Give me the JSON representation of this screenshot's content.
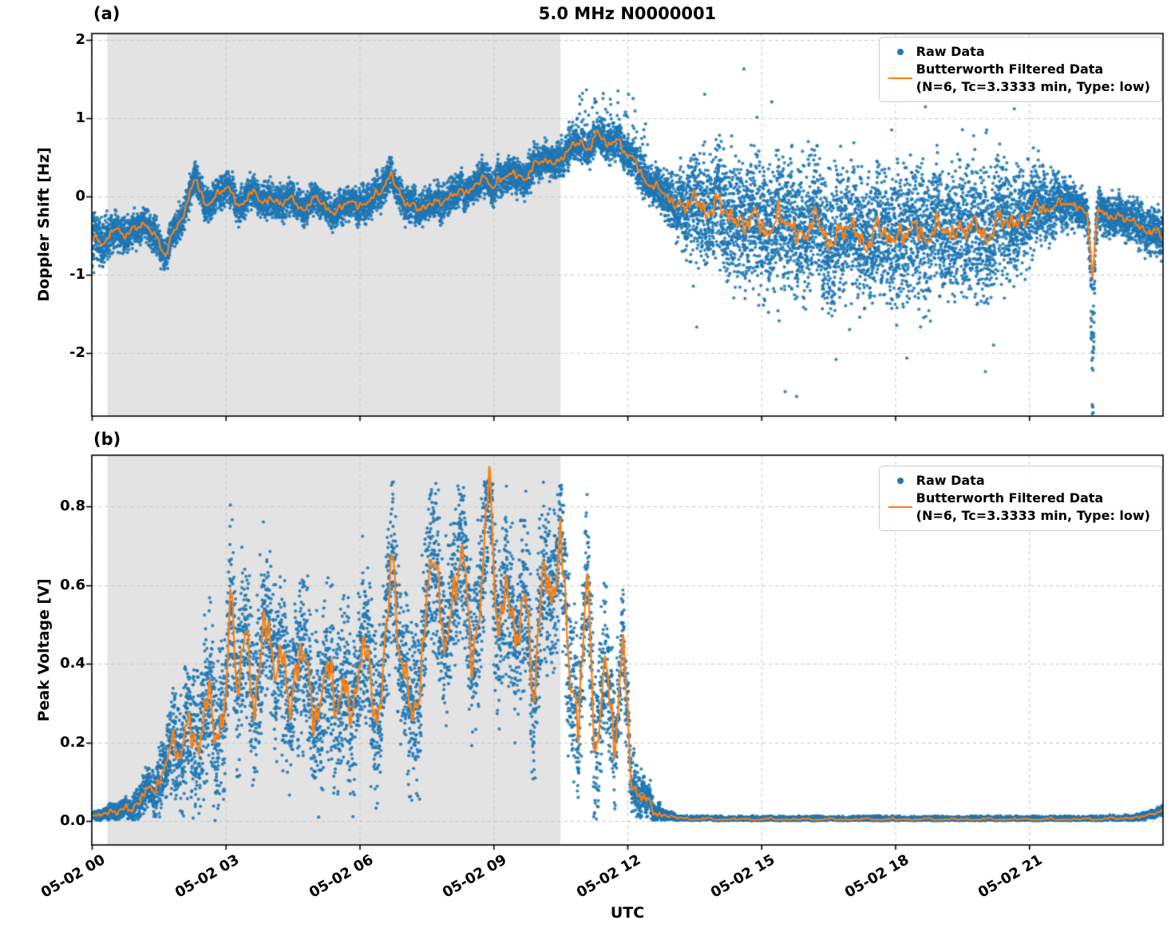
{
  "title": "5.0 MHz N0000001",
  "xlabel": "UTC",
  "legend": {
    "raw_label": "Raw Data",
    "filtered_label": "Butterworth Filtered Data",
    "filtered_sublabel": "(N=6, Tc=3.3333 min, Type: low)"
  },
  "colors": {
    "raw": "#1f77b4",
    "filtered": "#ff7f0e",
    "shade": "rgba(128,128,128,0.22)",
    "grid": "#c8c8c8",
    "axis": "#000000"
  },
  "x_axis": {
    "range_hours": [
      0,
      24
    ],
    "tick_hours": [
      0,
      3,
      6,
      9,
      12,
      15,
      18,
      21
    ],
    "tick_labels": [
      "05-02 00",
      "05-02 03",
      "05-02 06",
      "05-02 09",
      "05-02 12",
      "05-02 15",
      "05-02 18",
      "05-02 21"
    ]
  },
  "chart_data": [
    {
      "id": "a",
      "panel_label": "(a)",
      "type": "scatter",
      "title": "5.0 MHz N0000001",
      "ylabel": "Doppler Shift [Hz]",
      "ylim": [
        -2.8,
        2.08
      ],
      "yticks": [
        -2,
        -1,
        0,
        1,
        2
      ],
      "ytick_labels": [
        "-2",
        "-1",
        "0",
        "1",
        "2"
      ],
      "shade_hours": [
        0.35,
        10.5
      ],
      "series": [
        {
          "name": "Raw Data",
          "type": "scatter"
        },
        {
          "name": "Butterworth Filtered Data (N=6, Tc=3.3333 min, Type: low)",
          "type": "line"
        }
      ],
      "filtered_line": {
        "x": [
          0,
          0.25,
          0.5,
          0.75,
          1.0,
          1.2,
          1.45,
          1.65,
          1.8,
          2.0,
          2.2,
          2.35,
          2.55,
          2.8,
          3.05,
          3.3,
          3.55,
          3.8,
          4.0,
          4.2,
          4.45,
          4.7,
          4.95,
          5.2,
          5.45,
          5.7,
          5.95,
          6.2,
          6.45,
          6.7,
          6.85,
          7.05,
          7.3,
          7.55,
          7.8,
          8.05,
          8.3,
          8.55,
          8.8,
          9.0,
          9.2,
          9.45,
          9.7,
          9.95,
          10.2,
          10.45,
          10.7,
          10.95,
          11.15,
          11.35,
          11.55,
          11.75,
          11.95,
          12.15,
          12.35,
          12.6,
          12.85,
          13.1,
          13.4,
          13.8,
          14.2,
          14.6,
          15.0,
          15.4,
          15.8,
          16.2,
          16.6,
          17.0,
          17.4,
          17.8,
          18.2,
          18.6,
          19.0,
          19.4,
          19.8,
          20.2,
          20.6,
          21.0,
          21.4,
          21.8,
          22.1,
          22.3,
          22.42,
          22.55,
          22.8,
          23.1,
          23.4,
          23.7,
          24.0
        ],
        "v": [
          -0.55,
          -0.62,
          -0.38,
          -0.5,
          -0.42,
          -0.3,
          -0.55,
          -0.78,
          -0.45,
          -0.3,
          0.05,
          0.18,
          -0.08,
          0.0,
          0.12,
          -0.12,
          0.05,
          -0.08,
          0.02,
          -0.12,
          -0.02,
          -0.15,
          -0.05,
          -0.1,
          -0.2,
          -0.08,
          -0.12,
          -0.02,
          0.0,
          0.32,
          0.1,
          -0.1,
          -0.18,
          -0.05,
          -0.12,
          0.02,
          0.1,
          0.05,
          0.3,
          0.12,
          0.22,
          0.3,
          0.25,
          0.38,
          0.5,
          0.42,
          0.6,
          0.72,
          0.62,
          0.78,
          0.68,
          0.75,
          0.55,
          0.45,
          0.28,
          0.1,
          0.02,
          -0.08,
          -0.12,
          -0.08,
          -0.22,
          -0.3,
          -0.38,
          -0.3,
          -0.45,
          -0.38,
          -0.52,
          -0.42,
          -0.55,
          -0.45,
          -0.5,
          -0.42,
          -0.48,
          -0.38,
          -0.45,
          -0.4,
          -0.32,
          -0.22,
          -0.12,
          -0.1,
          -0.12,
          -0.18,
          -1.05,
          -0.18,
          -0.22,
          -0.28,
          -0.35,
          -0.42,
          -0.55
        ]
      },
      "scatter_spread": {
        "x": [
          0,
          0.4,
          0.8,
          10.5,
          11.5,
          12.6,
          13.0,
          13.6,
          14.4,
          20.0,
          21.0,
          21.6,
          22.2,
          23.2,
          24
        ],
        "v": [
          0.45,
          0.32,
          0.27,
          0.27,
          0.3,
          0.3,
          0.45,
          0.8,
          1.0,
          1.0,
          0.75,
          0.45,
          0.33,
          0.33,
          0.4
        ]
      },
      "wiggle": {
        "x": [
          0,
          12.8,
          13.6,
          20.6,
          21.6,
          24
        ],
        "v": [
          0.05,
          0.06,
          0.16,
          0.16,
          0.06,
          0.06
        ]
      },
      "n_points": 14000,
      "seed": 7
    },
    {
      "id": "b",
      "panel_label": "(b)",
      "type": "scatter",
      "ylabel": "Peak Voltage [V]",
      "ylim": [
        -0.06,
        0.93
      ],
      "yticks": [
        0,
        0.2,
        0.4,
        0.6,
        0.8
      ],
      "ytick_labels": [
        "0.0",
        "0.2",
        "0.4",
        "0.6",
        "0.8"
      ],
      "shade_hours": [
        0.35,
        10.5
      ],
      "y_clip": [
        0.002,
        0.87
      ],
      "series": [
        {
          "name": "Raw Data",
          "type": "scatter"
        },
        {
          "name": "Butterworth Filtered Data (N=6, Tc=3.3333 min, Type: low)",
          "type": "line"
        }
      ],
      "filtered_line": {
        "x": [
          0,
          0.5,
          0.9,
          1.3,
          1.6,
          1.8,
          2.0,
          2.2,
          2.4,
          2.6,
          2.8,
          3.0,
          3.1,
          3.25,
          3.45,
          3.65,
          3.85,
          4.05,
          4.25,
          4.45,
          4.65,
          4.85,
          5.05,
          5.25,
          5.45,
          5.65,
          5.85,
          6.05,
          6.25,
          6.45,
          6.6,
          6.75,
          6.9,
          7.1,
          7.3,
          7.5,
          7.7,
          7.9,
          8.1,
          8.3,
          8.5,
          8.7,
          8.9,
          9.1,
          9.3,
          9.5,
          9.7,
          9.9,
          10.1,
          10.3,
          10.5,
          10.7,
          10.9,
          11.1,
          11.3,
          11.5,
          11.7,
          11.9,
          12.1,
          12.35,
          12.6,
          12.9,
          13.3,
          14.0,
          16.0,
          18.0,
          20.0,
          22.0,
          23.0,
          23.6,
          24.0
        ],
        "v": [
          0.02,
          0.02,
          0.04,
          0.07,
          0.13,
          0.2,
          0.15,
          0.28,
          0.2,
          0.27,
          0.24,
          0.3,
          0.62,
          0.32,
          0.45,
          0.33,
          0.5,
          0.37,
          0.45,
          0.3,
          0.42,
          0.34,
          0.3,
          0.38,
          0.28,
          0.35,
          0.3,
          0.42,
          0.34,
          0.3,
          0.5,
          0.65,
          0.4,
          0.34,
          0.3,
          0.5,
          0.73,
          0.44,
          0.55,
          0.68,
          0.45,
          0.55,
          0.83,
          0.5,
          0.62,
          0.44,
          0.55,
          0.35,
          0.65,
          0.5,
          0.76,
          0.4,
          0.24,
          0.58,
          0.2,
          0.42,
          0.15,
          0.47,
          0.1,
          0.05,
          0.03,
          0.012,
          0.007,
          0.005,
          0.005,
          0.005,
          0.005,
          0.005,
          0.007,
          0.012,
          0.03
        ]
      },
      "scatter_spread": {
        "x": [
          0,
          0.8,
          1.4,
          2.0,
          2.6,
          10.8,
          11.6,
          12.0,
          12.4,
          12.8,
          13.2,
          22.8,
          23.5,
          24
        ],
        "v": [
          0.015,
          0.03,
          0.08,
          0.18,
          0.26,
          0.26,
          0.24,
          0.14,
          0.06,
          0.02,
          0.006,
          0.006,
          0.01,
          0.015
        ]
      },
      "wiggle": {
        "x": [
          0,
          1.5,
          2.5,
          11.5,
          12.3,
          13,
          24
        ],
        "v": [
          0.005,
          0.02,
          0.06,
          0.06,
          0.02,
          0.003,
          0.003
        ]
      },
      "n_points": 12000,
      "seed": 11
    }
  ]
}
